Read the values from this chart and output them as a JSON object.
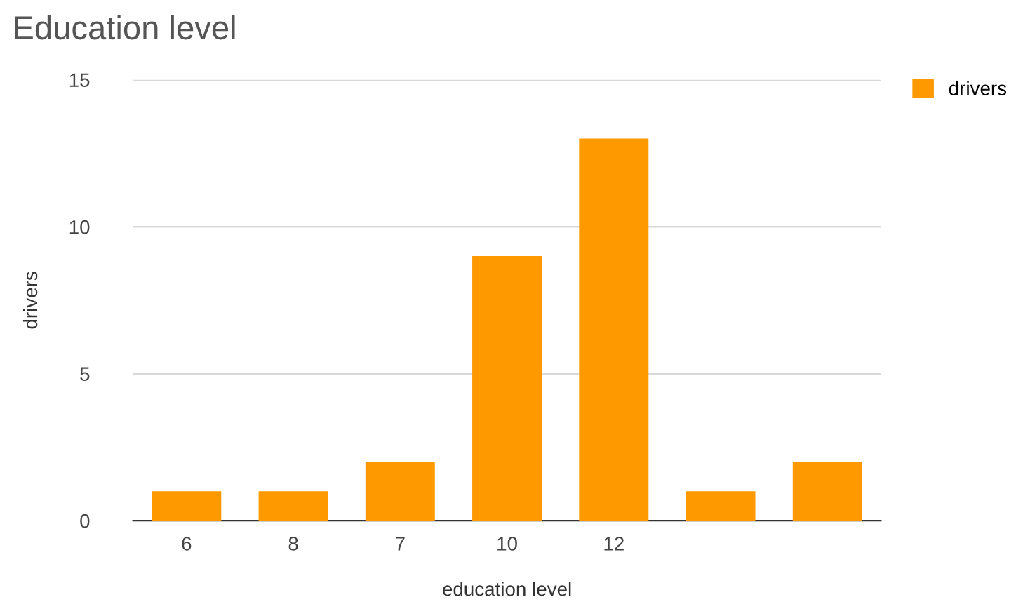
{
  "chart_data": {
    "type": "bar",
    "title": "Education level",
    "xlabel": "education level",
    "ylabel": "drivers",
    "categories": [
      "6",
      "8",
      "7",
      "10",
      "12",
      null,
      null
    ],
    "series": [
      {
        "name": "drivers",
        "color": "#ff9900",
        "values": [
          1,
          1,
          2,
          9,
          13,
          1,
          2
        ]
      }
    ],
    "ylim": [
      0,
      15
    ],
    "yticks": [
      0,
      5,
      10,
      15
    ],
    "grid": "y",
    "legend": "top right"
  }
}
